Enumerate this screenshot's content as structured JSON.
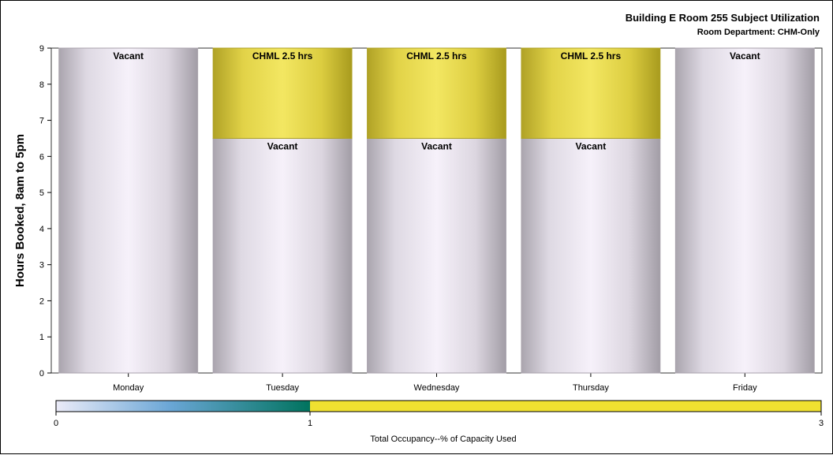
{
  "chart_data": {
    "type": "bar",
    "stacked": true,
    "title": "Building E Room 255 Subject Utilization",
    "subtitle": "Room Department: CHM-Only",
    "ylabel": "Hours Booked, 8am to 5pm",
    "xlabel": "",
    "ylim": [
      0,
      9
    ],
    "yticks": [
      0,
      1,
      2,
      3,
      4,
      5,
      6,
      7,
      8,
      9
    ],
    "categories": [
      "Monday",
      "Tuesday",
      "Wednesday",
      "Thursday",
      "Friday"
    ],
    "bars": [
      {
        "category": "Monday",
        "segments": [
          {
            "label": "Vacant",
            "value": 9,
            "occupancy": 0
          }
        ]
      },
      {
        "category": "Tuesday",
        "segments": [
          {
            "label": "Vacant",
            "value": 6.5,
            "occupancy": 0
          },
          {
            "label": "CHML 2.5 hrs",
            "value": 2.5,
            "occupancy": 1.5
          }
        ]
      },
      {
        "category": "Wednesday",
        "segments": [
          {
            "label": "Vacant",
            "value": 6.5,
            "occupancy": 0
          },
          {
            "label": "CHML 2.5 hrs",
            "value": 2.5,
            "occupancy": 1.5
          }
        ]
      },
      {
        "category": "Thursday",
        "segments": [
          {
            "label": "Vacant",
            "value": 6.5,
            "occupancy": 0
          },
          {
            "label": "CHML 2.5 hrs",
            "value": 2.5,
            "occupancy": 1.5
          }
        ]
      },
      {
        "category": "Friday",
        "segments": [
          {
            "label": "Vacant",
            "value": 9,
            "occupancy": 0
          }
        ]
      }
    ],
    "colorbar": {
      "title": "Total Occupancy--% of Capacity Used",
      "range": [
        0,
        3
      ],
      "ticks": [
        "0",
        "1",
        "3"
      ],
      "colors": [
        "#ebebf8",
        "#6aa6d6",
        "#00735e",
        "#f0e130"
      ]
    },
    "colors": {
      "vacant": "#f3eef8",
      "vacant_edge": "#a8a2ac",
      "booked": "#f2e660",
      "booked_edge": "#aea125"
    },
    "grid": false,
    "legend": "bottom colorbar"
  }
}
